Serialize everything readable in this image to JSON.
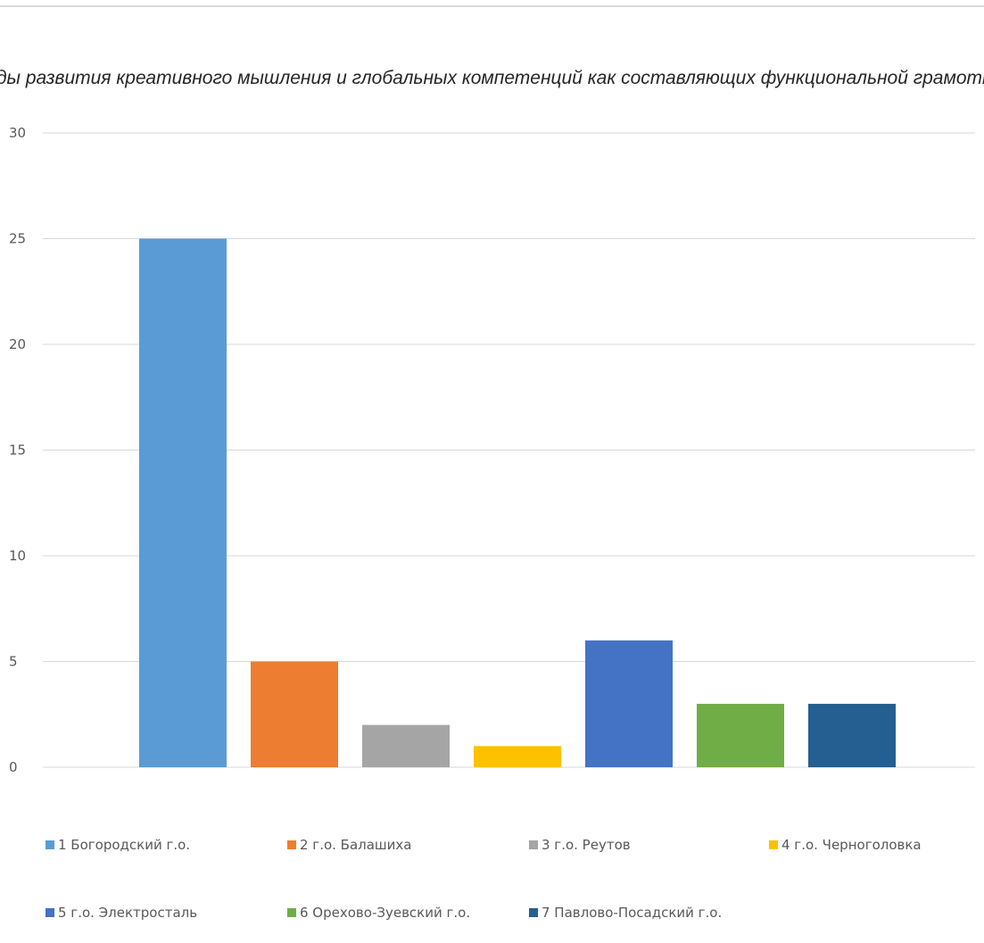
{
  "chart_data": {
    "type": "bar",
    "title": "«Методы развития креативного мышления и глобальных компетенций как составляющих функциональной грамотности»",
    "xlabel": "",
    "ylabel": "",
    "ylim": [
      0,
      30
    ],
    "yticks": [
      0,
      5,
      10,
      15,
      20,
      25,
      30
    ],
    "grid": true,
    "legend_position": "bottom",
    "series": [
      {
        "name": "1 Богородский г.о.",
        "values": [
          25
        ],
        "color": "#5b9bd5"
      },
      {
        "name": "2 г.о. Балашиха",
        "values": [
          5
        ],
        "color": "#ed7d31"
      },
      {
        "name": "3 г.о. Реутов",
        "values": [
          2
        ],
        "color": "#a5a5a5"
      },
      {
        "name": "4 г.о. Черноголовка",
        "values": [
          1
        ],
        "color": "#ffc000"
      },
      {
        "name": "5 г.о. Электросталь",
        "values": [
          6
        ],
        "color": "#4472c4"
      },
      {
        "name": "6 Орехово-Зуевский г.о.",
        "values": [
          3
        ],
        "color": "#70ad47"
      },
      {
        "name": "7 Павлово-Посадский г.о.",
        "values": [
          3
        ],
        "color": "#255e91"
      }
    ]
  }
}
